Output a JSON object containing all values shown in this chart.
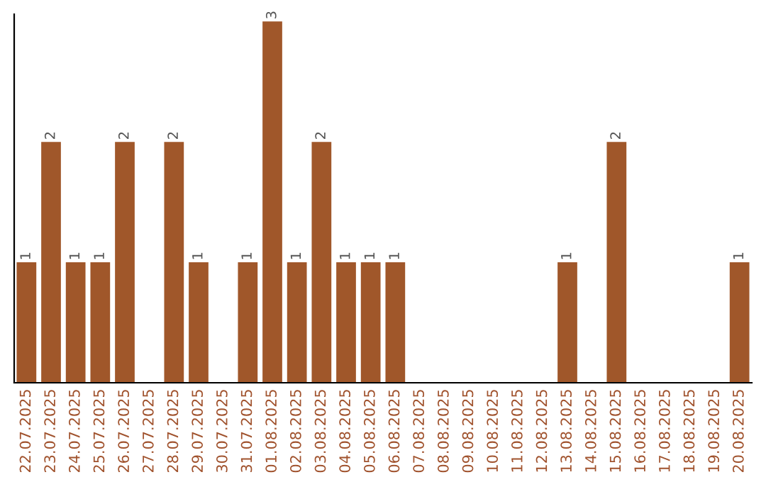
{
  "chart_data": {
    "type": "bar",
    "categories": [
      "22.07.2025",
      "23.07.2025",
      "24.07.2025",
      "25.07.2025",
      "26.07.2025",
      "27.07.2025",
      "28.07.2025",
      "29.07.2025",
      "30.07.2025",
      "31.07.2025",
      "01.08.2025",
      "02.08.2025",
      "03.08.2025",
      "04.08.2025",
      "05.08.2025",
      "06.08.2025",
      "07.08.2025",
      "08.08.2025",
      "09.08.2025",
      "10.08.2025",
      "11.08.2025",
      "12.08.2025",
      "13.08.2025",
      "14.08.2025",
      "15.08.2025",
      "16.08.2025",
      "17.08.2025",
      "18.08.2025",
      "19.08.2025",
      "20.08.2025"
    ],
    "values": [
      1,
      2,
      1,
      1,
      2,
      0,
      2,
      1,
      0,
      1,
      3,
      1,
      2,
      1,
      1,
      1,
      0,
      0,
      0,
      0,
      0,
      0,
      1,
      0,
      2,
      0,
      0,
      0,
      0,
      1
    ],
    "value_labels": [
      "1",
      "2",
      "1",
      "1",
      "2",
      null,
      "2",
      "1",
      null,
      "1",
      "3",
      "1",
      "2",
      "1",
      "1",
      "1",
      null,
      null,
      null,
      null,
      null,
      null,
      "1",
      null,
      "2",
      null,
      null,
      null,
      null,
      "1"
    ],
    "color": "#a0572a",
    "ylim": [
      0,
      3.06
    ],
    "grid": false,
    "legend": false
  }
}
